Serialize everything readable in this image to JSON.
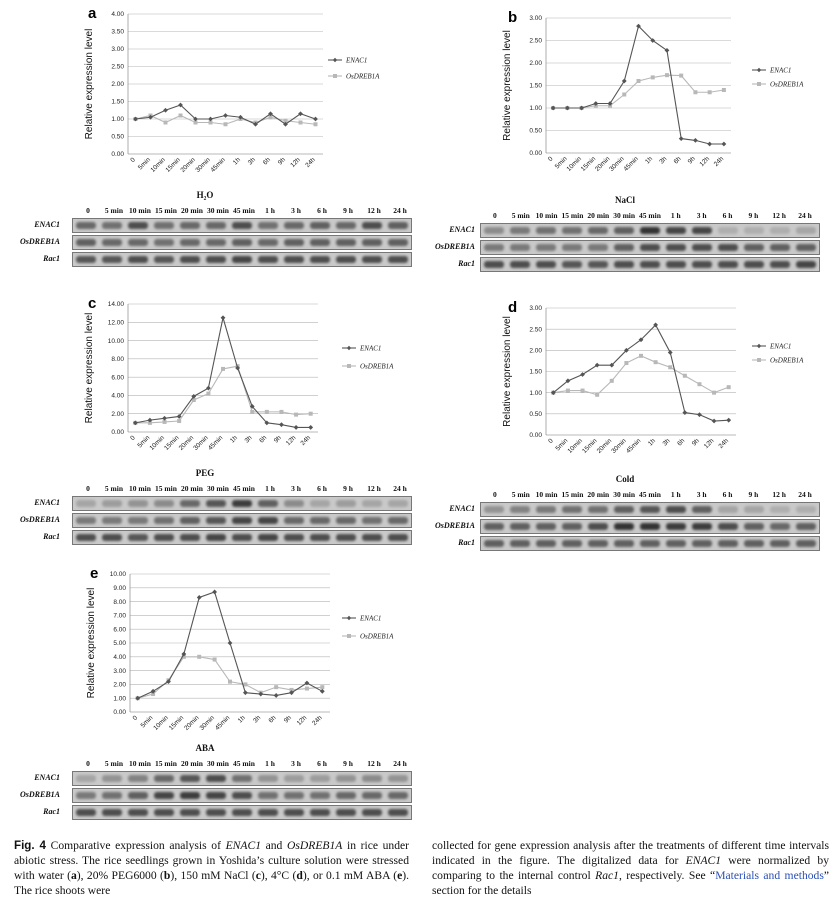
{
  "panels": [
    {
      "id": "a",
      "label": "a",
      "ymax": 4,
      "ystep": 0.5,
      "yticks": [
        "0.00",
        "0.50",
        "1.00",
        "1.50",
        "2.00",
        "2.50",
        "3.00",
        "3.50",
        "4.00"
      ],
      "ylabel": "Relative expression level",
      "xticks": [
        "0",
        "5min",
        "10min",
        "15min",
        "20min",
        "30min",
        "45min",
        "1h",
        "3h",
        "6h",
        "9h",
        "12h",
        "24h"
      ],
      "series": [
        {
          "name": "ENAC1",
          "values": [
            1.0,
            1.05,
            1.25,
            1.4,
            1.0,
            1.0,
            1.1,
            1.05,
            0.85,
            1.15,
            0.85,
            1.15,
            1.0
          ]
        },
        {
          "name": "OsDREB1A",
          "values": [
            1.0,
            1.1,
            0.9,
            1.1,
            0.9,
            0.9,
            0.85,
            1.0,
            0.9,
            1.05,
            0.95,
            0.9,
            0.85
          ]
        }
      ]
    },
    {
      "id": "b",
      "label": "b",
      "ymax": 3,
      "ystep": 0.5,
      "yticks": [
        "0.00",
        "0.50",
        "1.00",
        "1.50",
        "2.00",
        "2.50",
        "3.00"
      ],
      "ylabel": "Relative expression level",
      "xticks": [
        "0",
        "5min",
        "10min",
        "15min",
        "20min",
        "30min",
        "45min",
        "1h",
        "3h",
        "6h",
        "9h",
        "12h",
        "24h"
      ],
      "series": [
        {
          "name": "ENAC1",
          "values": [
            1.0,
            1.0,
            1.0,
            1.1,
            1.1,
            1.6,
            2.82,
            2.5,
            2.28,
            0.32,
            0.28,
            0.2,
            0.2
          ]
        },
        {
          "name": "OsDREB1A",
          "values": [
            1.0,
            1.0,
            1.0,
            1.05,
            1.05,
            1.3,
            1.6,
            1.68,
            1.73,
            1.72,
            1.35,
            1.35,
            1.4
          ]
        }
      ]
    },
    {
      "id": "c",
      "label": "c",
      "ymax": 14,
      "ystep": 2,
      "yticks": [
        "0.00",
        "2.00",
        "4.00",
        "6.00",
        "8.00",
        "10.00",
        "12.00",
        "14.00"
      ],
      "ylabel": "Relative expression level",
      "xticks": [
        "0",
        "5min",
        "10min",
        "15min",
        "20min",
        "30min",
        "45min",
        "1h",
        "3h",
        "6h",
        "9h",
        "12h",
        "24h"
      ],
      "series": [
        {
          "name": "ENAC1",
          "values": [
            1.0,
            1.3,
            1.5,
            1.7,
            3.9,
            4.8,
            12.5,
            7.0,
            2.8,
            1.0,
            0.8,
            0.5,
            0.5
          ]
        },
        {
          "name": "OsDREB1A",
          "values": [
            1.0,
            1.0,
            1.1,
            1.2,
            3.5,
            4.2,
            6.9,
            7.2,
            2.2,
            2.2,
            2.2,
            1.9,
            2.0
          ]
        }
      ]
    },
    {
      "id": "d",
      "label": "d",
      "ymax": 3,
      "ystep": 0.5,
      "yticks": [
        "0.00",
        "0.50",
        "1.00",
        "1.50",
        "2.00",
        "2.50",
        "3.00"
      ],
      "ylabel": "Relative expression level",
      "xticks": [
        "0",
        "5min",
        "10min",
        "15min",
        "20min",
        "30min",
        "45min",
        "1h",
        "3h",
        "6h",
        "9h",
        "12h",
        "24h"
      ],
      "series": [
        {
          "name": "ENAC1",
          "values": [
            1.0,
            1.28,
            1.43,
            1.65,
            1.65,
            2.0,
            2.25,
            2.6,
            1.95,
            0.53,
            0.48,
            0.33,
            0.35
          ]
        },
        {
          "name": "OsDREB1A",
          "values": [
            1.0,
            1.05,
            1.05,
            0.95,
            1.28,
            1.7,
            1.87,
            1.72,
            1.6,
            1.4,
            1.2,
            1.0,
            1.13
          ]
        }
      ]
    },
    {
      "id": "e",
      "label": "e",
      "ymax": 10,
      "ystep": 1,
      "yticks": [
        "0.00",
        "1.00",
        "2.00",
        "3.00",
        "4.00",
        "5.00",
        "6.00",
        "7.00",
        "8.00",
        "9.00",
        "10.00"
      ],
      "ylabel": "Relative expression level",
      "xticks": [
        "0",
        "5min",
        "10min",
        "15min",
        "20min",
        "30min",
        "45min",
        "1h",
        "3h",
        "6h",
        "9h",
        "12h",
        "24h"
      ],
      "series": [
        {
          "name": "ENAC1",
          "values": [
            1.0,
            1.5,
            2.2,
            4.2,
            8.3,
            8.7,
            5.0,
            1.4,
            1.3,
            1.2,
            1.4,
            2.1,
            1.5
          ]
        },
        {
          "name": "OsDREB1A",
          "values": [
            1.0,
            1.3,
            2.3,
            4.0,
            4.0,
            3.8,
            2.2,
            2.0,
            1.4,
            1.8,
            1.6,
            1.7,
            1.8
          ]
        }
      ]
    }
  ],
  "gels": [
    {
      "id": "h2o",
      "title": "H₂O",
      "lanes": [
        "0",
        "5 min",
        "10 min",
        "15 min",
        "20 min",
        "30 min",
        "45 min",
        "1 h",
        "3 h",
        "6 h",
        "9 h",
        "12 h",
        "24 h"
      ],
      "rows": [
        {
          "label": "ENAC1",
          "intensity": [
            0.55,
            0.5,
            0.7,
            0.5,
            0.55,
            0.55,
            0.7,
            0.5,
            0.55,
            0.6,
            0.55,
            0.7,
            0.6
          ]
        },
        {
          "label": "OsDREB1A",
          "intensity": [
            0.6,
            0.55,
            0.55,
            0.5,
            0.55,
            0.55,
            0.6,
            0.55,
            0.6,
            0.6,
            0.6,
            0.6,
            0.6
          ]
        },
        {
          "label": "Rac1",
          "intensity": [
            0.65,
            0.65,
            0.7,
            0.65,
            0.7,
            0.7,
            0.75,
            0.7,
            0.7,
            0.7,
            0.7,
            0.7,
            0.7
          ]
        }
      ]
    },
    {
      "id": "nacl",
      "title": "NaCl",
      "lanes": [
        "0",
        "5 min",
        "10 min",
        "15 min",
        "20 min",
        "30 min",
        "45 min",
        "1 h",
        "3 h",
        "6 h",
        "9 h",
        "12 h",
        "24 h"
      ],
      "rows": [
        {
          "label": "ENAC1",
          "intensity": [
            0.35,
            0.45,
            0.5,
            0.5,
            0.55,
            0.6,
            0.85,
            0.75,
            0.75,
            0.15,
            0.15,
            0.15,
            0.2
          ]
        },
        {
          "label": "OsDREB1A",
          "intensity": [
            0.45,
            0.45,
            0.45,
            0.45,
            0.45,
            0.6,
            0.7,
            0.7,
            0.7,
            0.7,
            0.6,
            0.6,
            0.6
          ]
        },
        {
          "label": "Rac1",
          "intensity": [
            0.7,
            0.7,
            0.7,
            0.65,
            0.65,
            0.7,
            0.7,
            0.7,
            0.7,
            0.7,
            0.7,
            0.7,
            0.75
          ]
        }
      ]
    },
    {
      "id": "peg",
      "title": "PEG",
      "lanes": [
        "0",
        "5 min",
        "10 min",
        "15 min",
        "20 min",
        "30 min",
        "45 min",
        "1 h",
        "3 h",
        "6 h",
        "9 h",
        "12 h",
        "24 h"
      ],
      "rows": [
        {
          "label": "ENAC1",
          "intensity": [
            0.2,
            0.25,
            0.3,
            0.35,
            0.55,
            0.65,
            0.8,
            0.6,
            0.35,
            0.2,
            0.25,
            0.2,
            0.2
          ]
        },
        {
          "label": "OsDREB1A",
          "intensity": [
            0.45,
            0.45,
            0.45,
            0.5,
            0.6,
            0.65,
            0.75,
            0.75,
            0.55,
            0.55,
            0.55,
            0.5,
            0.55
          ]
        },
        {
          "label": "Rac1",
          "intensity": [
            0.7,
            0.7,
            0.65,
            0.7,
            0.7,
            0.75,
            0.7,
            0.75,
            0.7,
            0.7,
            0.7,
            0.7,
            0.7
          ]
        }
      ]
    },
    {
      "id": "cold",
      "title": "Cold",
      "lanes": [
        "0",
        "5 min",
        "10 min",
        "15 min",
        "20 min",
        "30 min",
        "45 min",
        "1 h",
        "3 h",
        "6 h",
        "9 h",
        "12 h",
        "24 h"
      ],
      "rows": [
        {
          "label": "ENAC1",
          "intensity": [
            0.3,
            0.4,
            0.45,
            0.5,
            0.5,
            0.6,
            0.65,
            0.7,
            0.6,
            0.2,
            0.2,
            0.15,
            0.15
          ]
        },
        {
          "label": "OsDREB1A",
          "intensity": [
            0.6,
            0.6,
            0.6,
            0.6,
            0.7,
            0.85,
            0.85,
            0.8,
            0.8,
            0.7,
            0.6,
            0.55,
            0.6
          ]
        },
        {
          "label": "Rac1",
          "intensity": [
            0.6,
            0.6,
            0.6,
            0.6,
            0.6,
            0.6,
            0.6,
            0.6,
            0.6,
            0.6,
            0.6,
            0.6,
            0.6
          ]
        }
      ]
    },
    {
      "id": "aba",
      "title": "ABA",
      "lanes": [
        "0",
        "5 min",
        "10 min",
        "15 min",
        "20 min",
        "30 min",
        "45 min",
        "1 h",
        "3 h",
        "6 h",
        "9 h",
        "12 h",
        "24 h"
      ],
      "rows": [
        {
          "label": "ENAC1",
          "intensity": [
            0.2,
            0.3,
            0.4,
            0.55,
            0.65,
            0.7,
            0.5,
            0.3,
            0.25,
            0.25,
            0.3,
            0.35,
            0.3
          ]
        },
        {
          "label": "OsDREB1A",
          "intensity": [
            0.45,
            0.5,
            0.6,
            0.75,
            0.8,
            0.75,
            0.7,
            0.5,
            0.5,
            0.5,
            0.55,
            0.55,
            0.55
          ]
        },
        {
          "label": "Rac1",
          "intensity": [
            0.7,
            0.7,
            0.7,
            0.7,
            0.7,
            0.7,
            0.7,
            0.7,
            0.7,
            0.7,
            0.7,
            0.7,
            0.7
          ]
        }
      ]
    }
  ],
  "caption": {
    "fig": "Fig. 4",
    "p1": " Comparative expression analysis of ",
    "g1": "ENAC1",
    "p2": " and ",
    "g2": "OsDREB1A",
    "p3": " in rice under abiotic stress. The rice seedlings grown in Yoshida’s culture solution were stressed with water (",
    "a": "a",
    "p4": "), 20% PEG6000 (",
    "b": "b",
    "p5": "), 150 mM NaCl (",
    "c": "c",
    "p6": "), 4°C (",
    "d": "d",
    "p7": "), or 0.1 mM ABA (",
    "e": "e",
    "p8": "). The rice shoots were",
    "r1": "collected for gene expression analysis after the treatments of different time intervals indicated in the figure. The digitalized data for ",
    "rg1": "ENAC1",
    "r2": " were normalized by comparing to the internal control ",
    "rg2": "Rac1",
    "r3": ", respectively. See “",
    "link": "Materials and methods",
    "r4": "” section for the details"
  }
}
